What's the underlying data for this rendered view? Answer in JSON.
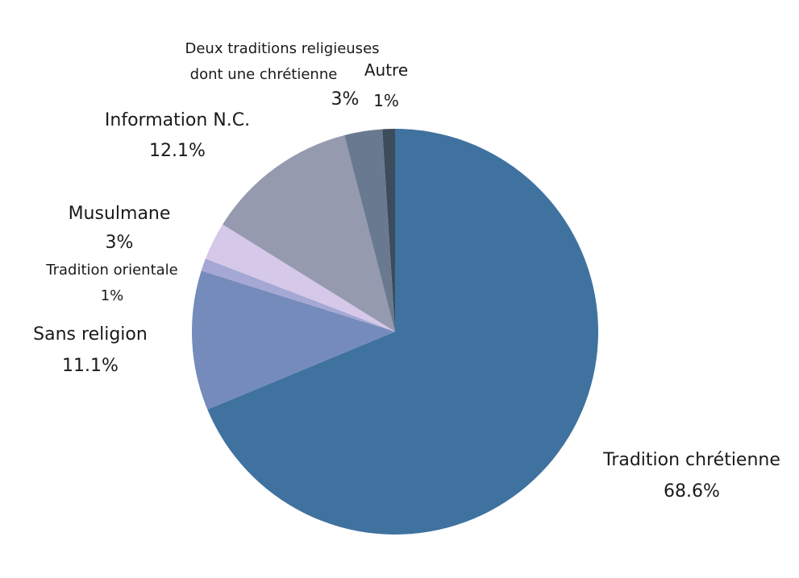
{
  "chart_data": {
    "type": "pie",
    "title": "",
    "slices": [
      {
        "label": "Tradition chrétienne",
        "value": 68.6,
        "display": "68.6%",
        "color": "#3f729f"
      },
      {
        "label": "Sans religion",
        "value": 11.1,
        "display": "11.1%",
        "color": "#758bbb"
      },
      {
        "label": "Tradition orientale",
        "value": 1,
        "display": "1%",
        "color": "#a5a8d4"
      },
      {
        "label": "Musulmane",
        "value": 3,
        "display": "3%",
        "color": "#d6c8e8"
      },
      {
        "label": "Information N.C.",
        "value": 12.1,
        "display": "12.1%",
        "color": "#959aaf"
      },
      {
        "label": "Deux traditions religieuses dont une chrétienne",
        "label_lines": [
          "Deux traditions religieuses",
          "dont une chrétienne"
        ],
        "value": 3,
        "display": "3%",
        "color": "#697a90"
      },
      {
        "label": "Autre",
        "value": 1,
        "display": "1%",
        "color": "#3b4c5c"
      }
    ]
  }
}
